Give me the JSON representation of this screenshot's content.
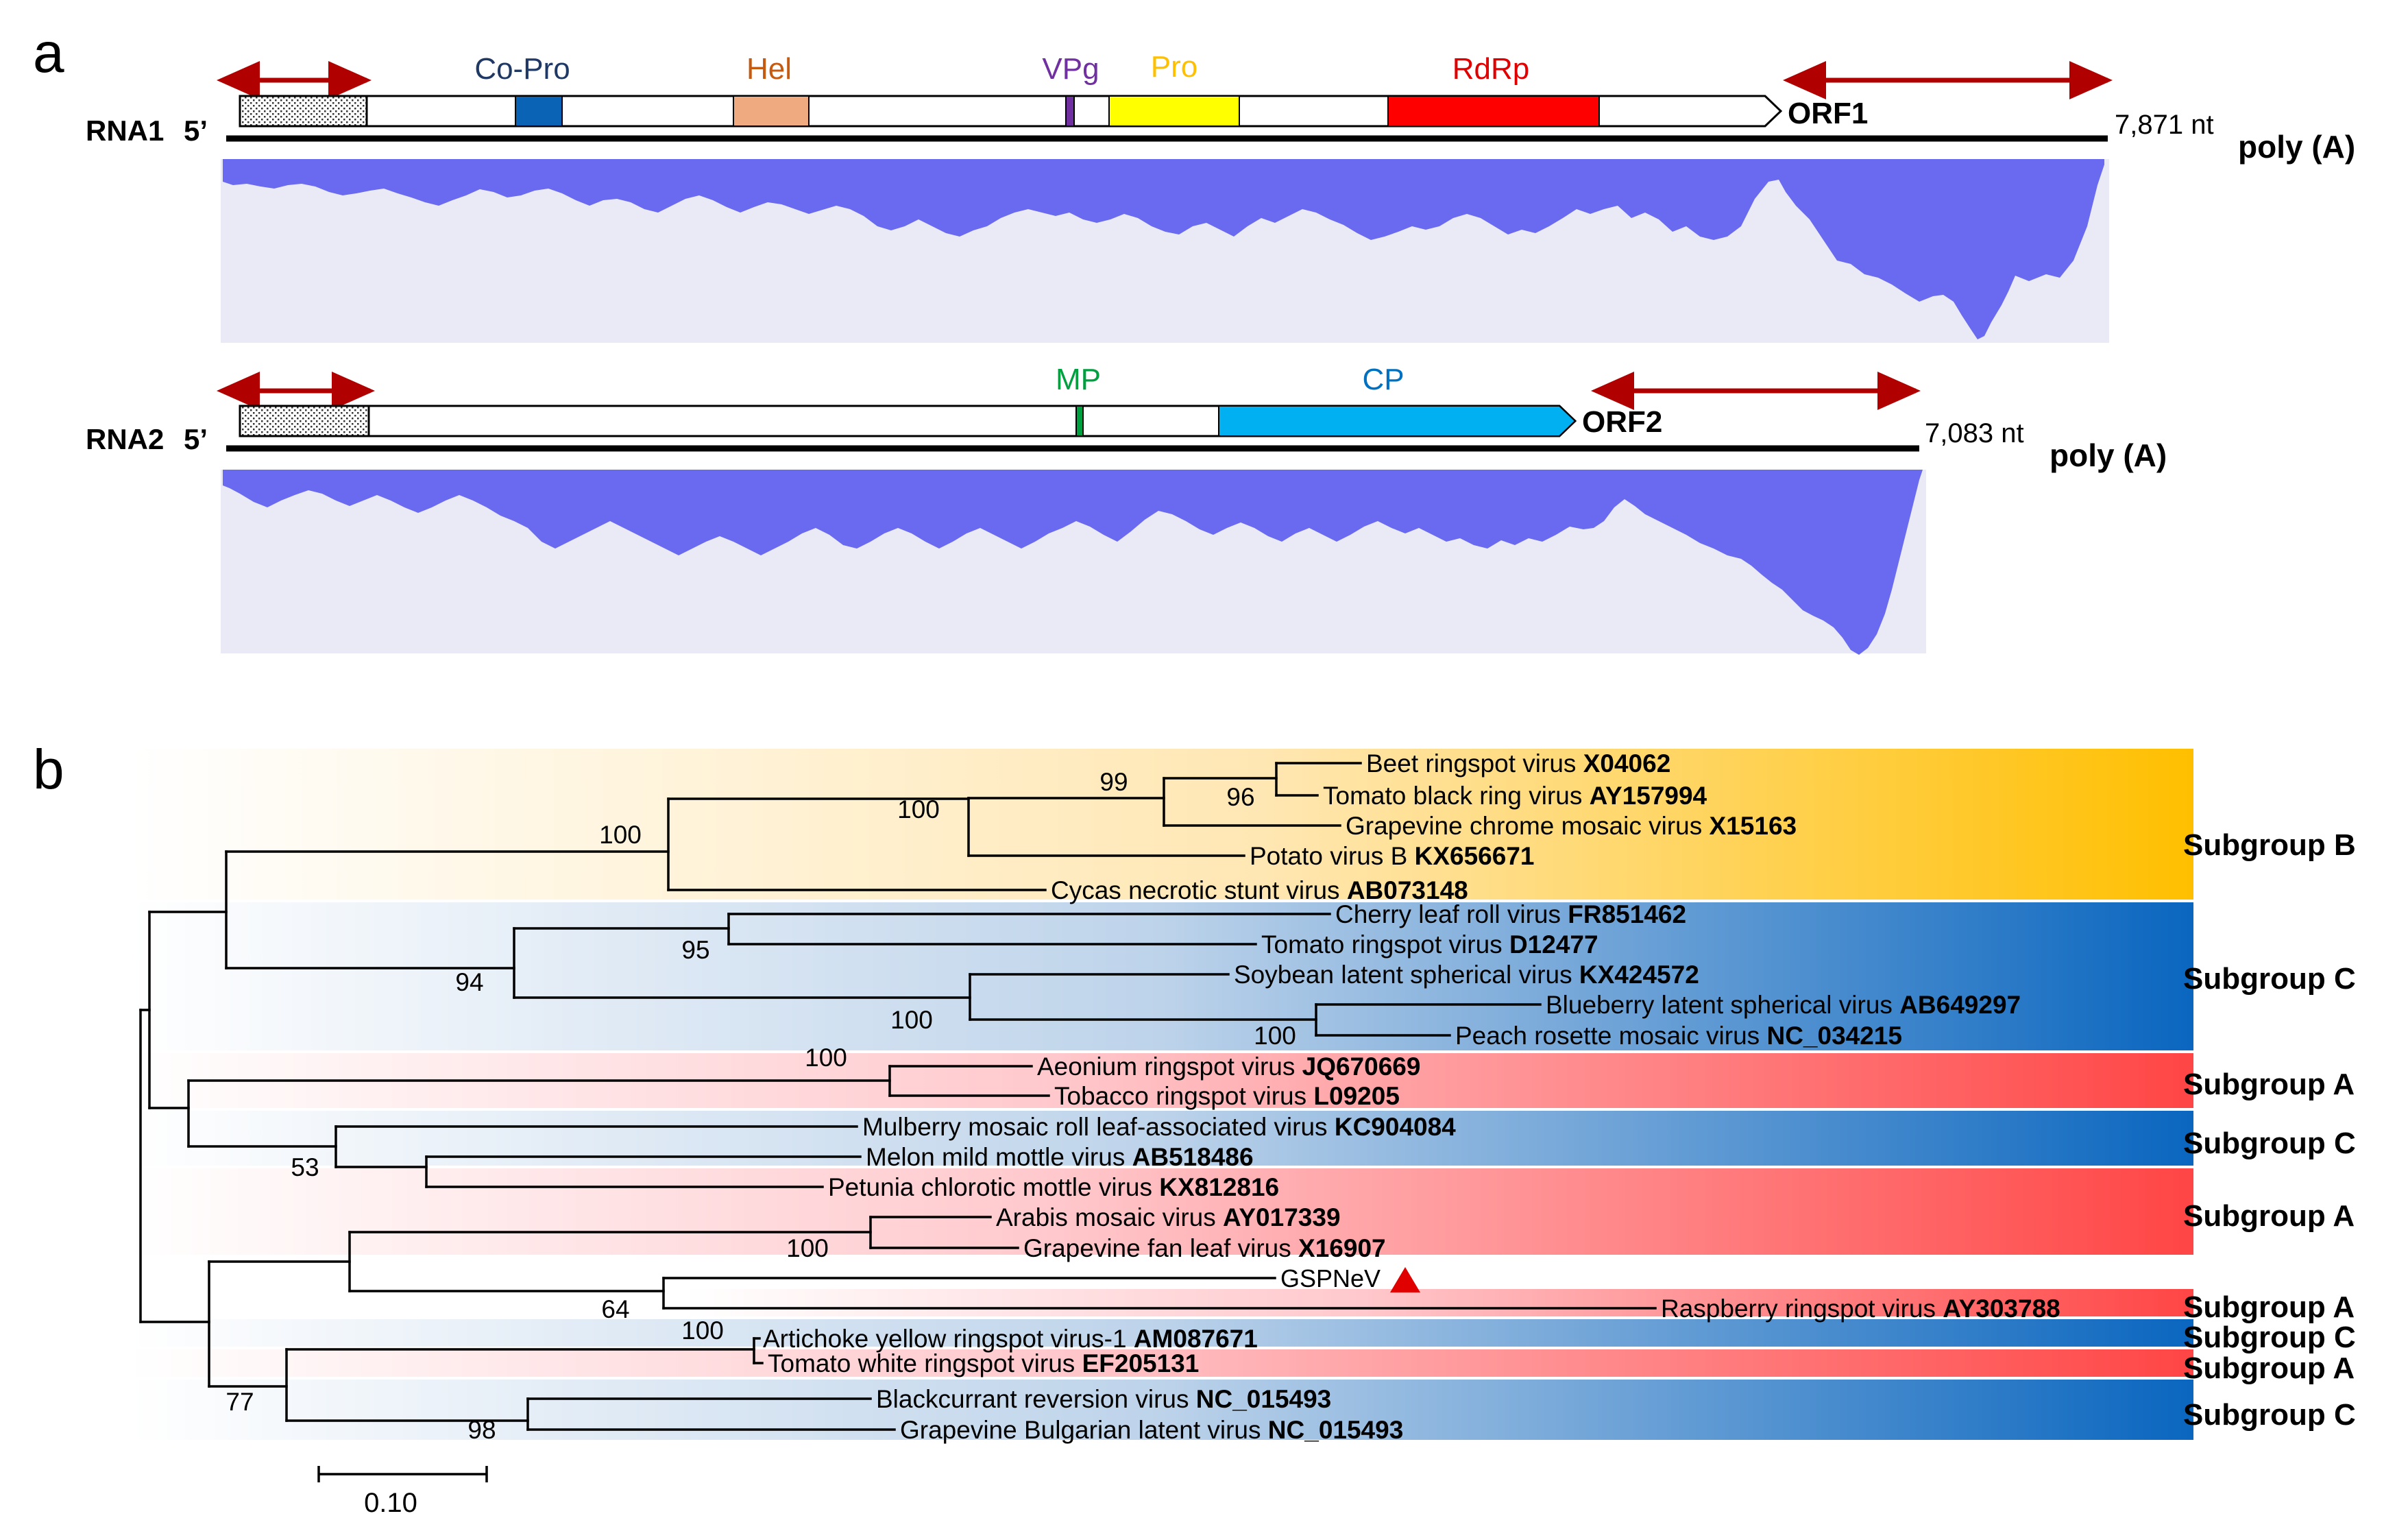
{
  "panel_a": {
    "label": "a",
    "rna1": {
      "name": "RNA1",
      "five_prime": "5’",
      "orf": "ORF1",
      "length": "7,871 nt",
      "polya": "poly (A)",
      "domains": [
        {
          "name": "Co-Pro",
          "color": "#0b63b6"
        },
        {
          "name": "Hel",
          "color": "#f0aa80"
        },
        {
          "name": "VPg",
          "color": "#7030a0"
        },
        {
          "name": "Pro",
          "color": "#ffff00"
        },
        {
          "name": "RdRp",
          "color": "#ff0000"
        }
      ],
      "label_colors": {
        "Co-Pro": "#1f3864",
        "Hel": "#c55a11",
        "VPg": "#7030a0",
        "Pro": "#ffc000",
        "RdRp": "#e00000"
      }
    },
    "rna2": {
      "name": "RNA2",
      "five_prime": "5’",
      "orf": "ORF2",
      "length": "7,083 nt",
      "polya": "poly (A)",
      "domains": [
        {
          "name": "MP",
          "color": "#00a040"
        },
        {
          "name": "CP",
          "color": "#00b0f0"
        }
      ],
      "label_colors": {
        "MP": "#00a040",
        "CP": "#0070c0"
      }
    },
    "coverage_color": "#6a6af0",
    "coverage_bg": "#eaeaf7",
    "arrow_color": "#b00000"
  },
  "panel_b": {
    "label": "b",
    "scale_bar": "0.10",
    "taxa": [
      {
        "name": "Beet ringspot virus",
        "acc": "X04062"
      },
      {
        "name": "Tomato black ring virus",
        "acc": "AY157994"
      },
      {
        "name": "Grapevine chrome mosaic virus",
        "acc": "X15163"
      },
      {
        "name": "Potato virus B",
        "acc": "KX656671"
      },
      {
        "name": "Cycas necrotic stunt virus",
        "acc": "AB073148"
      },
      {
        "name": "Cherry leaf roll virus",
        "acc": "FR851462"
      },
      {
        "name": "Tomato ringspot virus",
        "acc": "D12477"
      },
      {
        "name": "Soybean latent spherical virus",
        "acc": "KX424572"
      },
      {
        "name": "Blueberry latent spherical virus",
        "acc": "AB649297"
      },
      {
        "name": "Peach rosette mosaic virus",
        "acc": "NC_034215"
      },
      {
        "name": "Aeonium ringspot virus",
        "acc": "JQ670669"
      },
      {
        "name": "Tobacco ringspot virus",
        "acc": "L09205"
      },
      {
        "name": "Mulberry mosaic roll leaf-associated virus",
        "acc": "KC904084"
      },
      {
        "name": "Melon mild mottle virus",
        "acc": "AB518486"
      },
      {
        "name": "Petunia chlorotic mottle virus",
        "acc": "KX812816"
      },
      {
        "name": "Arabis mosaic virus",
        "acc": "AY017339"
      },
      {
        "name": "Grapevine fan leaf virus",
        "acc": "X16907"
      },
      {
        "name": "GSPNeV",
        "acc": ""
      },
      {
        "name": "Raspberry ringspot virus",
        "acc": "AY303788"
      },
      {
        "name": "Artichoke yellow ringspot virus-1",
        "acc": "AM087671"
      },
      {
        "name": "Tomato white ringspot virus",
        "acc": "EF205131"
      },
      {
        "name": "Blackcurrant reversion virus",
        "acc": "NC_015493"
      },
      {
        "name": "Grapevine Bulgarian latent virus",
        "acc": "NC_015493"
      }
    ],
    "bootstrap": [
      "99",
      "96",
      "100",
      "100",
      "95",
      "94",
      "100",
      "100",
      "100",
      "53",
      "100",
      "64",
      "100",
      "77",
      "98"
    ],
    "subgroups": [
      "Subgroup B",
      "Subgroup C",
      "Subgroup A",
      "Subgroup C",
      "Subgroup A",
      "Subgroup A",
      "Subgroup C",
      "Subgroup A",
      "Subgroup C"
    ],
    "colors": {
      "B": "#ffc000",
      "C": "#0070c0",
      "A": "#ff4040",
      "marker": "#e00000"
    }
  }
}
